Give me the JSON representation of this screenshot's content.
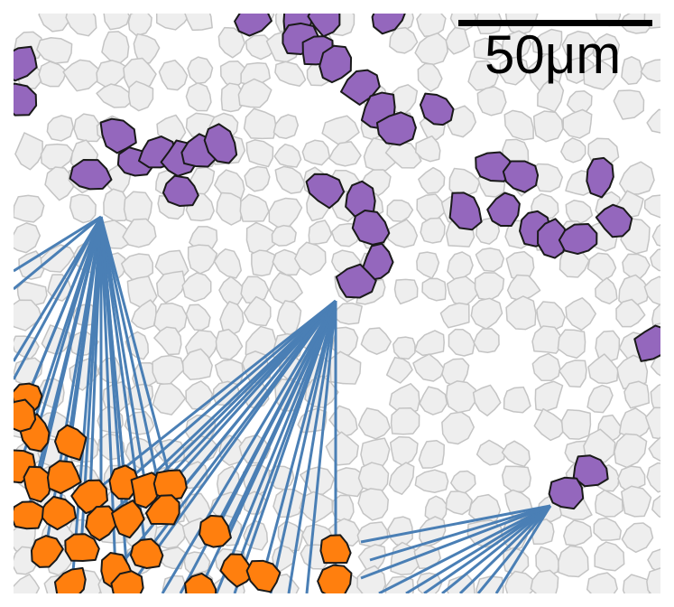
{
  "scale_bar": {
    "label": "50μm"
  },
  "colors": {
    "background_cells": "#eeeeee",
    "background_cell_edge": "#c4c4c4",
    "source_cells": "#9467bd",
    "target_cells": "#ff7f0e",
    "connections": "#4a7fb5",
    "cell_outline": "#1a1a1a"
  }
}
